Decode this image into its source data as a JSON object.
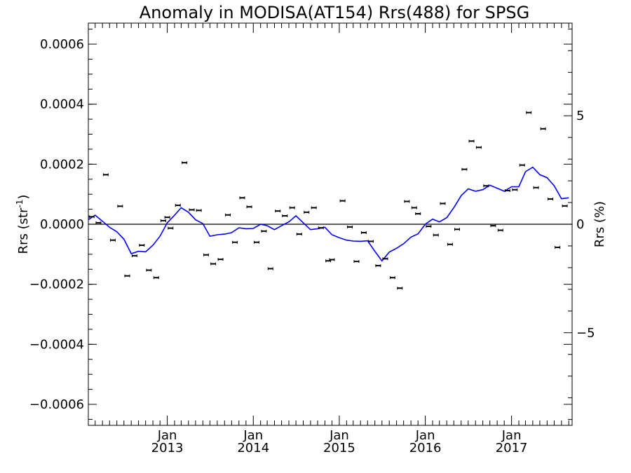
{
  "chart_data": {
    "type": "line",
    "title": "Anomaly in MODISA(AT154) Rrs(488) for SPSG",
    "ylabel_left": "Rrs (str",
    "ylabel_left_sup": "-1",
    "ylabel_left_close": ")",
    "ylabel_right": "Rrs (%)",
    "ylim": [
      -0.00067,
      0.00067
    ],
    "y2lim": [
      -9.27,
      9.27
    ],
    "xlim": [
      "2012-02-01",
      "2017-09-15"
    ],
    "y_ticks": [
      {
        "value": 0.0006,
        "label": "0.0006"
      },
      {
        "value": 0.0004,
        "label": "0.0004"
      },
      {
        "value": 0.0002,
        "label": "0.0002"
      },
      {
        "value": 0.0,
        "label": "0.0000"
      },
      {
        "value": -0.0002,
        "label": "−0.0002"
      },
      {
        "value": -0.0004,
        "label": "−0.0004"
      },
      {
        "value": -0.0006,
        "label": "−0.0006"
      }
    ],
    "y2_ticks": [
      {
        "value": 5,
        "label": "5"
      },
      {
        "value": 0,
        "label": "0"
      },
      {
        "value": -5,
        "label": "−5"
      }
    ],
    "x_ticks": [
      {
        "date": "2013-01-01",
        "month": "Jan",
        "year": "2013"
      },
      {
        "date": "2014-01-01",
        "month": "Jan",
        "year": "2014"
      },
      {
        "date": "2015-01-01",
        "month": "Jan",
        "year": "2015"
      },
      {
        "date": "2016-01-01",
        "month": "Jan",
        "year": "2016"
      },
      {
        "date": "2017-01-01",
        "month": "Jan",
        "year": "2017"
      }
    ],
    "zero_line": 0.0,
    "series": [
      {
        "type": "scatter",
        "marker": "errorbar",
        "color": "#000000",
        "points": [
          [
            "2012-02-15",
            2.5e-05
          ],
          [
            "2012-03-15",
            5e-06
          ],
          [
            "2012-04-15",
            0.000165
          ],
          [
            "2012-05-15",
            -5.3e-05
          ],
          [
            "2012-06-15",
            6e-05
          ],
          [
            "2012-07-15",
            -0.000172
          ],
          [
            "2012-08-15",
            -0.000105
          ],
          [
            "2012-09-15",
            -7e-05
          ],
          [
            "2012-10-15",
            -0.000153
          ],
          [
            "2012-11-15",
            -0.000178
          ],
          [
            "2012-12-15",
            1.2e-05
          ],
          [
            "2013-01-01",
            2.3e-05
          ],
          [
            "2013-01-15",
            -1.3e-05
          ],
          [
            "2013-02-15",
            6.3e-05
          ],
          [
            "2013-03-15",
            0.000205
          ],
          [
            "2013-04-15",
            4.8e-05
          ],
          [
            "2013-05-15",
            4.6e-05
          ],
          [
            "2013-06-15",
            -0.000102
          ],
          [
            "2013-07-15",
            -0.000132
          ],
          [
            "2013-08-15",
            -0.000117
          ],
          [
            "2013-09-15",
            3.1e-05
          ],
          [
            "2013-10-15",
            -6e-05
          ],
          [
            "2013-11-15",
            8.8e-05
          ],
          [
            "2013-12-15",
            5.8e-05
          ],
          [
            "2014-01-15",
            -6e-05
          ],
          [
            "2014-02-15",
            -2.3e-05
          ],
          [
            "2014-03-15",
            -0.000148
          ],
          [
            "2014-04-15",
            4.4e-05
          ],
          [
            "2014-05-15",
            2.8e-05
          ],
          [
            "2014-06-15",
            5.5e-05
          ],
          [
            "2014-07-15",
            -3.3e-05
          ],
          [
            "2014-08-15",
            4e-05
          ],
          [
            "2014-09-15",
            5.5e-05
          ],
          [
            "2014-10-15",
            -1.2e-05
          ],
          [
            "2014-11-15",
            -0.000122
          ],
          [
            "2014-12-01",
            -0.000118
          ],
          [
            "2015-01-15",
            7.8e-05
          ],
          [
            "2015-02-15",
            -9e-06
          ],
          [
            "2015-03-15",
            -0.000124
          ],
          [
            "2015-04-15",
            -2.8e-05
          ],
          [
            "2015-05-15",
            -5.7e-05
          ],
          [
            "2015-06-15",
            -0.000138
          ],
          [
            "2015-07-15",
            -0.000115
          ],
          [
            "2015-08-15",
            -0.000178
          ],
          [
            "2015-09-15",
            -0.000213
          ],
          [
            "2015-10-15",
            7.6e-05
          ],
          [
            "2015-11-15",
            5.5e-05
          ],
          [
            "2015-12-01",
            3.5e-05
          ],
          [
            "2016-01-15",
            -7e-06
          ],
          [
            "2016-02-15",
            -3.6e-05
          ],
          [
            "2016-03-15",
            6.9e-05
          ],
          [
            "2016-04-15",
            -6.7e-05
          ],
          [
            "2016-05-15",
            -1.7e-05
          ],
          [
            "2016-06-15",
            0.000183
          ],
          [
            "2016-07-15",
            0.000277
          ],
          [
            "2016-08-15",
            0.000256
          ],
          [
            "2016-09-15",
            0.000128
          ],
          [
            "2016-10-15",
            -5e-06
          ],
          [
            "2016-11-15",
            -2e-05
          ],
          [
            "2016-12-15",
            0.000112
          ],
          [
            "2017-01-15",
            0.000115
          ],
          [
            "2017-02-15",
            0.000197
          ],
          [
            "2017-03-15",
            0.000372
          ],
          [
            "2017-04-15",
            0.000122
          ],
          [
            "2017-05-15",
            0.000318
          ],
          [
            "2017-06-15",
            8.4e-05
          ],
          [
            "2017-07-15",
            -7.7e-05
          ],
          [
            "2017-08-15",
            6.1e-05
          ]
        ]
      },
      {
        "type": "line",
        "color": "#0000ff",
        "points": [
          [
            "2012-02-01",
            1.5e-05
          ],
          [
            "2012-03-01",
            3e-05
          ],
          [
            "2012-04-01",
            1e-05
          ],
          [
            "2012-05-01",
            -1e-05
          ],
          [
            "2012-06-01",
            -2.5e-05
          ],
          [
            "2012-07-01",
            -5e-05
          ],
          [
            "2012-08-01",
            -9.8e-05
          ],
          [
            "2012-09-01",
            -9e-05
          ],
          [
            "2012-10-01",
            -9.2e-05
          ],
          [
            "2012-11-01",
            -7e-05
          ],
          [
            "2012-12-01",
            -4e-05
          ],
          [
            "2013-01-01",
            5e-06
          ],
          [
            "2013-02-01",
            3e-05
          ],
          [
            "2013-03-01",
            5.5e-05
          ],
          [
            "2013-04-01",
            4e-05
          ],
          [
            "2013-05-01",
            1.5e-05
          ],
          [
            "2013-06-01",
            2e-06
          ],
          [
            "2013-07-01",
            -4e-05
          ],
          [
            "2013-08-01",
            -3.5e-05
          ],
          [
            "2013-09-01",
            -3.3e-05
          ],
          [
            "2013-10-01",
            -2.8e-05
          ],
          [
            "2013-11-01",
            -1.2e-05
          ],
          [
            "2013-12-01",
            -1.5e-05
          ],
          [
            "2014-01-01",
            -1.4e-05
          ],
          [
            "2014-02-01",
            0.0
          ],
          [
            "2014-03-01",
            -5e-06
          ],
          [
            "2014-04-01",
            -1.8e-05
          ],
          [
            "2014-05-01",
            -5e-06
          ],
          [
            "2014-06-01",
            8e-06
          ],
          [
            "2014-07-01",
            2.8e-05
          ],
          [
            "2014-08-01",
            5e-06
          ],
          [
            "2014-09-01",
            -1.8e-05
          ],
          [
            "2014-10-01",
            -1.5e-05
          ],
          [
            "2014-11-01",
            -1e-05
          ],
          [
            "2014-12-01",
            -3.5e-05
          ],
          [
            "2015-01-01",
            -4.5e-05
          ],
          [
            "2015-02-01",
            -5.3e-05
          ],
          [
            "2015-03-01",
            -5.6e-05
          ],
          [
            "2015-04-01",
            -5.7e-05
          ],
          [
            "2015-05-01",
            -5.5e-05
          ],
          [
            "2015-06-01",
            -9e-05
          ],
          [
            "2015-07-01",
            -0.000122
          ],
          [
            "2015-08-01",
            -9.3e-05
          ],
          [
            "2015-09-01",
            -8e-05
          ],
          [
            "2015-10-01",
            -6.5e-05
          ],
          [
            "2015-11-01",
            -4.3e-05
          ],
          [
            "2015-12-01",
            -3.2e-05
          ],
          [
            "2016-01-01",
            0.0
          ],
          [
            "2016-02-01",
            1.7e-05
          ],
          [
            "2016-03-01",
            8e-06
          ],
          [
            "2016-04-01",
            2.2e-05
          ],
          [
            "2016-05-01",
            5.5e-05
          ],
          [
            "2016-06-01",
            9.5e-05
          ],
          [
            "2016-07-01",
            0.000118
          ],
          [
            "2016-08-01",
            0.00011
          ],
          [
            "2016-09-01",
            0.000115
          ],
          [
            "2016-10-01",
            0.00013
          ],
          [
            "2016-11-01",
            0.00012
          ],
          [
            "2016-12-01",
            0.00011
          ],
          [
            "2017-01-01",
            0.000125
          ],
          [
            "2017-02-01",
            0.000125
          ],
          [
            "2017-03-01",
            0.000175
          ],
          [
            "2017-04-01",
            0.00019
          ],
          [
            "2017-05-01",
            0.000165
          ],
          [
            "2017-06-01",
            0.000155
          ],
          [
            "2017-07-01",
            0.000128
          ],
          [
            "2017-08-01",
            8.5e-05
          ],
          [
            "2017-09-01",
            8.8e-05
          ]
        ]
      }
    ]
  }
}
